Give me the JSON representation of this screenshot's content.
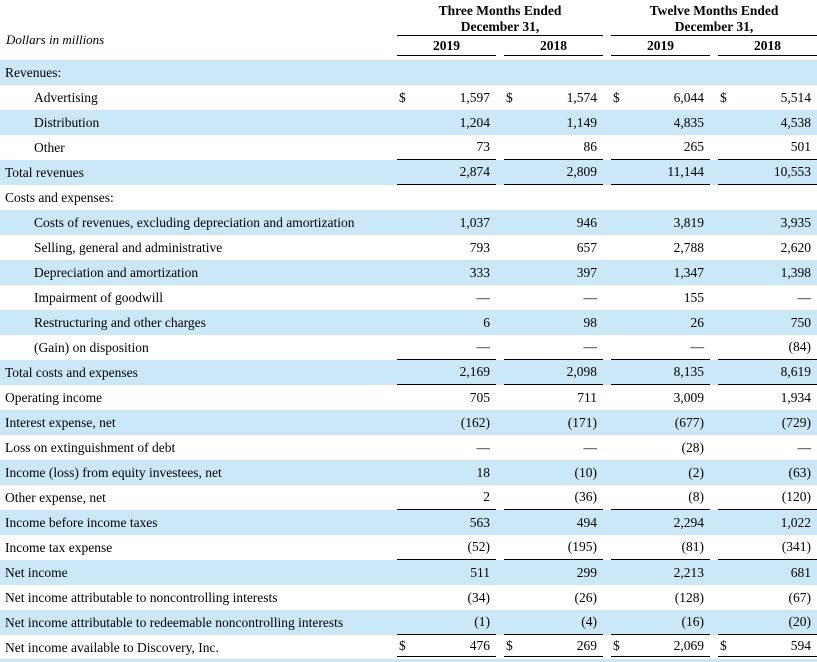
{
  "meta": {
    "units_label": "Dollars in millions",
    "currency": "$",
    "accent_blue": "#cbe8f9",
    "text_color": "#000000"
  },
  "header": {
    "groups": [
      {
        "line1": "Three Months Ended",
        "line2": "December 31,"
      },
      {
        "line1": "Twelve Months Ended",
        "line2": "December 31,"
      }
    ],
    "columns": [
      "2019",
      "2018",
      "2019",
      "2018"
    ]
  },
  "rows": [
    {
      "label": "Revenues:",
      "values": [
        "",
        "",
        "",
        ""
      ]
    },
    {
      "label": "Advertising",
      "values": [
        "1,597",
        "1,574",
        "6,044",
        "5,514"
      ]
    },
    {
      "label": "Distribution",
      "values": [
        "1,204",
        "1,149",
        "4,835",
        "4,538"
      ]
    },
    {
      "label": "Other",
      "values": [
        "73",
        "86",
        "265",
        "501"
      ]
    },
    {
      "label": "Total revenues",
      "values": [
        "2,874",
        "2,809",
        "11,144",
        "10,553"
      ]
    },
    {
      "label": "Costs and expenses:",
      "values": [
        "",
        "",
        "",
        ""
      ]
    },
    {
      "label": "Costs of revenues, excluding depreciation and amortization",
      "values": [
        "1,037",
        "946",
        "3,819",
        "3,935"
      ]
    },
    {
      "label": "Selling, general and administrative",
      "values": [
        "793",
        "657",
        "2,788",
        "2,620"
      ]
    },
    {
      "label": "Depreciation and amortization",
      "values": [
        "333",
        "397",
        "1,347",
        "1,398"
      ]
    },
    {
      "label": "Impairment of goodwill",
      "values": [
        "—",
        "—",
        "155",
        "—"
      ]
    },
    {
      "label": "Restructuring and other charges",
      "values": [
        "6",
        "98",
        "26",
        "750"
      ]
    },
    {
      "label": "(Gain) on disposition",
      "values": [
        "—",
        "—",
        "—",
        "(84)"
      ]
    },
    {
      "label": "Total costs and expenses",
      "values": [
        "2,169",
        "2,098",
        "8,135",
        "8,619"
      ]
    },
    {
      "label": "Operating income",
      "values": [
        "705",
        "711",
        "3,009",
        "1,934"
      ]
    },
    {
      "label": "Interest expense, net",
      "values": [
        "(162)",
        "(171)",
        "(677)",
        "(729)"
      ]
    },
    {
      "label": "Loss on extinguishment of debt",
      "values": [
        "—",
        "—",
        "(28)",
        "—"
      ]
    },
    {
      "label": "Income (loss) from equity investees, net",
      "values": [
        "18",
        "(10)",
        "(2)",
        "(63)"
      ]
    },
    {
      "label": "Other expense, net",
      "values": [
        "2",
        "(36)",
        "(8)",
        "(120)"
      ]
    },
    {
      "label": "Income before income taxes",
      "values": [
        "563",
        "494",
        "2,294",
        "1,022"
      ]
    },
    {
      "label": "Income tax expense",
      "values": [
        "(52)",
        "(195)",
        "(81)",
        "(341)"
      ]
    },
    {
      "label": "Net income",
      "values": [
        "511",
        "299",
        "2,213",
        "681"
      ]
    },
    {
      "label": "Net income attributable to noncontrolling interests",
      "values": [
        "(34)",
        "(26)",
        "(128)",
        "(67)"
      ]
    },
    {
      "label": "Net income attributable to redeemable noncontrolling interests",
      "values": [
        "(1)",
        "(4)",
        "(16)",
        "(20)"
      ]
    },
    {
      "label": "Net income available to Discovery, Inc.",
      "values": [
        "476",
        "269",
        "2,069",
        "594"
      ]
    }
  ]
}
